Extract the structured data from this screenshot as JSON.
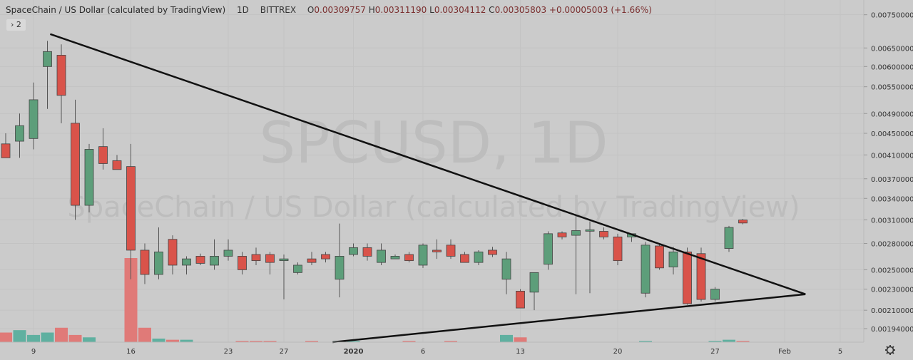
{
  "header": {
    "symbol_name": "SpaceChain / US Dollar (calculated by TradingView)",
    "interval": "1D",
    "exchange": "BITTREX",
    "o_label": "O",
    "o_value": "0.00309757",
    "h_label": "H",
    "h_value": "0.00311190",
    "l_label": "L",
    "l_value": "0.00304112",
    "c_label": "C",
    "c_value": "0.00305803",
    "change": "+0.00005003 (+1.66%)"
  },
  "indicators_badge": "2",
  "watermark": {
    "line1": "SPCUSD, 1D",
    "line2": "SpaceChain / US Dollar (calculated by TradingView)"
  },
  "colors": {
    "background": "#cbcbcb",
    "up": "#5d9e7a",
    "down": "#d9534a",
    "vol_up": "#5fb0a0",
    "vol_down": "#e07a78",
    "trendline": "#111111",
    "axis_text": "#333333",
    "grid": "#c3c3c3"
  },
  "chart_data": {
    "type": "candlestick",
    "title": "SpaceChain / US Dollar (calculated by TradingView)",
    "price_axis": {
      "ticks": [
        "0.00750000",
        "0.00650000",
        "0.00600000",
        "0.00550000",
        "0.00490000",
        "0.00450000",
        "0.00410000",
        "0.00370000",
        "0.00340000",
        "0.00310000",
        "0.00280000",
        "0.00250000",
        "0.00230000",
        "0.00210000",
        "0.00194000"
      ],
      "scale": "log",
      "range": [
        0.00183,
        0.00775
      ]
    },
    "time_axis": {
      "labels": [
        {
          "text": "9",
          "i": 2
        },
        {
          "text": "16",
          "i": 9
        },
        {
          "text": "23",
          "i": 16
        },
        {
          "text": "27",
          "i": 20
        },
        {
          "text": "2020",
          "i": 25,
          "bold": true
        },
        {
          "text": "6",
          "i": 30
        },
        {
          "text": "13",
          "i": 37
        },
        {
          "text": "20",
          "i": 44
        },
        {
          "text": "27",
          "i": 51
        },
        {
          "text": "Feb",
          "i": 56
        },
        {
          "text": "5",
          "i": 60
        }
      ]
    },
    "candles": [
      [
        0.0043,
        0.0045,
        0.00405,
        0.00405
      ],
      [
        0.00435,
        0.0049,
        0.00405,
        0.00465
      ],
      [
        0.0044,
        0.0056,
        0.0042,
        0.0052
      ],
      [
        0.006,
        0.0067,
        0.005,
        0.0064
      ],
      [
        0.0063,
        0.0066,
        0.0047,
        0.0053
      ],
      [
        0.0047,
        0.0052,
        0.0031,
        0.0033
      ],
      [
        0.0033,
        0.0043,
        0.0032,
        0.0042
      ],
      [
        0.00425,
        0.0046,
        0.00385,
        0.00395
      ],
      [
        0.004,
        0.0041,
        0.00385,
        0.00385
      ],
      [
        0.0039,
        0.0043,
        0.0024,
        0.00272
      ],
      [
        0.00272,
        0.0028,
        0.00235,
        0.00245
      ],
      [
        0.00245,
        0.003,
        0.0024,
        0.0027
      ],
      [
        0.00285,
        0.0029,
        0.00245,
        0.00255
      ],
      [
        0.00255,
        0.00265,
        0.00245,
        0.00262
      ],
      [
        0.00265,
        0.00268,
        0.00255,
        0.00257
      ],
      [
        0.00255,
        0.00285,
        0.0025,
        0.00265
      ],
      [
        0.00265,
        0.00285,
        0.0026,
        0.00272
      ],
      [
        0.00265,
        0.0027,
        0.00245,
        0.0025
      ],
      [
        0.00267,
        0.00275,
        0.00255,
        0.0026
      ],
      [
        0.00267,
        0.0027,
        0.00245,
        0.00258
      ],
      [
        0.0026,
        0.00267,
        0.0022,
        0.00262
      ],
      [
        0.00247,
        0.00258,
        0.00245,
        0.00255
      ],
      [
        0.00262,
        0.0027,
        0.00255,
        0.00258
      ],
      [
        0.00267,
        0.0027,
        0.00258,
        0.00262
      ],
      [
        0.0024,
        0.00305,
        0.00222,
        0.00265
      ],
      [
        0.00267,
        0.0028,
        0.00265,
        0.00275
      ],
      [
        0.00275,
        0.0028,
        0.0026,
        0.00265
      ],
      [
        0.00258,
        0.0028,
        0.00255,
        0.00272
      ],
      [
        0.00262,
        0.00267,
        0.00262,
        0.00265
      ],
      [
        0.00267,
        0.0027,
        0.00258,
        0.0026
      ],
      [
        0.00255,
        0.0028,
        0.00252,
        0.00278
      ],
      [
        0.00272,
        0.00285,
        0.00262,
        0.0027
      ],
      [
        0.00278,
        0.00285,
        0.00262,
        0.00265
      ],
      [
        0.00267,
        0.0027,
        0.00258,
        0.00258
      ],
      [
        0.00258,
        0.00272,
        0.00255,
        0.0027
      ],
      [
        0.00272,
        0.00276,
        0.00264,
        0.00267
      ],
      [
        0.0024,
        0.0027,
        0.00225,
        0.00262
      ],
      [
        0.00228,
        0.0023,
        0.00212,
        0.00212
      ],
      [
        0.00227,
        0.00245,
        0.0021,
        0.00247
      ],
      [
        0.00256,
        0.00295,
        0.0025,
        0.00292
      ],
      [
        0.00293,
        0.00295,
        0.00285,
        0.00288
      ],
      [
        0.0029,
        0.00315,
        0.00225,
        0.00296
      ],
      [
        0.00296,
        0.00308,
        0.00226,
        0.00297
      ],
      [
        0.00295,
        0.003,
        0.00285,
        0.00288
      ],
      [
        0.00288,
        0.00292,
        0.00255,
        0.0026
      ],
      [
        0.00288,
        0.00292,
        0.00282,
        0.00292
      ],
      [
        0.00226,
        0.00282,
        0.00222,
        0.00278
      ],
      [
        0.00277,
        0.0028,
        0.0025,
        0.00252
      ],
      [
        0.00253,
        0.00276,
        0.00245,
        0.0027
      ],
      [
        0.0027,
        0.00275,
        0.00215,
        0.00216
      ],
      [
        0.00268,
        0.00275,
        0.00218,
        0.0022
      ],
      [
        0.0022,
        0.00232,
        0.00218,
        0.0023
      ],
      [
        0.00274,
        0.00302,
        0.0027,
        0.003
      ],
      [
        0.003098,
        0.003112,
        0.003041,
        0.003058
      ]
    ],
    "volume": [
      8,
      10,
      6,
      8,
      12,
      6,
      4,
      0,
      0,
      70,
      12,
      3,
      2,
      2,
      0,
      0,
      0,
      1,
      1,
      1,
      0,
      0,
      1,
      0,
      1,
      1,
      0,
      0,
      0,
      1,
      0,
      0,
      1,
      0,
      0,
      0,
      6,
      4,
      0,
      0,
      0,
      0,
      0,
      0,
      0,
      0,
      1,
      0,
      0,
      0,
      0,
      1,
      2,
      1
    ],
    "trendlines": [
      {
        "from": {
          "i": 3.2,
          "price": 0.0069
        },
        "to": {
          "i": 57.5,
          "price": 0.00225
        }
      },
      {
        "from": {
          "i": 23.5,
          "price": 0.00183
        },
        "to": {
          "i": 57.5,
          "price": 0.00225
        }
      }
    ]
  }
}
